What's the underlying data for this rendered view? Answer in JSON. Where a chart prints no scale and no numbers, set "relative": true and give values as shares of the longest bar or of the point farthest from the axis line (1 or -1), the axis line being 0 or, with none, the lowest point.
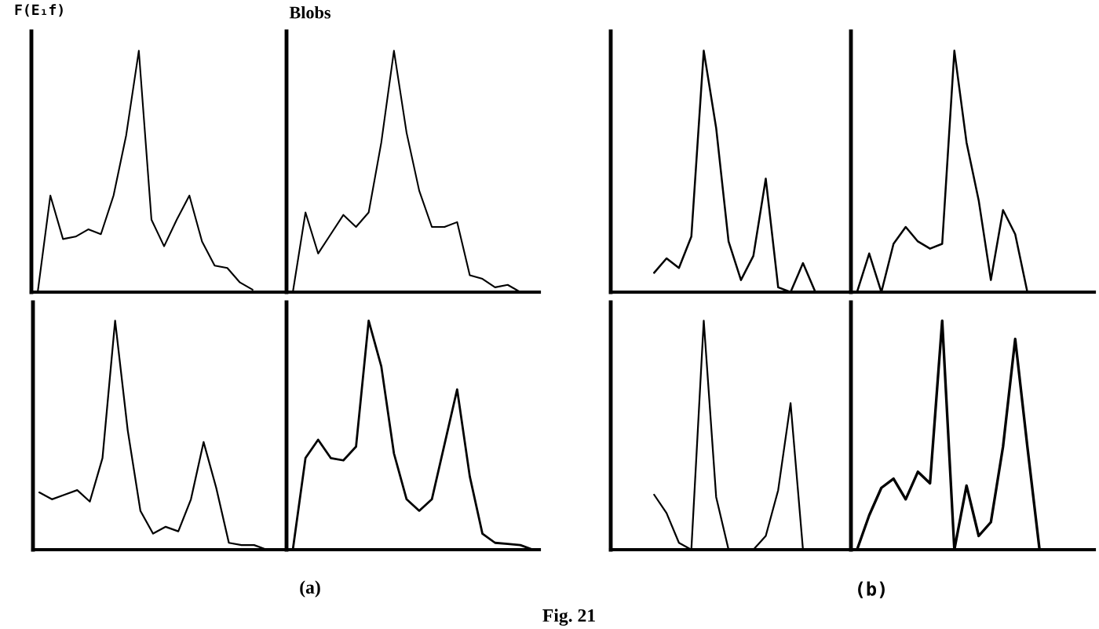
{
  "chart_data": [
    {
      "type": "line",
      "ylabel": "F(E₁f)",
      "annotations": [
        "(a)",
        "(b)",
        "Fig. 21"
      ],
      "relative": true,
      "categories": [
        null,
        null,
        null,
        null,
        null,
        null,
        null,
        null,
        null,
        null,
        null,
        null,
        null,
        null,
        null,
        null,
        null,
        null,
        null,
        null
      ],
      "series": [
        {
          "color": "#000000",
          "values": [
            0,
            0.4,
            0.22,
            0.23,
            0.26,
            0.24,
            0.4,
            0.65,
            1.0,
            0.3,
            0.19,
            0.3,
            0.4,
            0.21,
            0.11,
            0.1,
            0.04,
            0.01,
            null,
            null
          ]
        }
      ]
    },
    {
      "type": "line",
      "title": "Blobs",
      "relative": true,
      "categories": [
        null,
        null,
        null,
        null,
        null,
        null,
        null,
        null,
        null,
        null,
        null,
        null,
        null,
        null,
        null,
        null,
        null,
        null,
        null,
        null
      ],
      "series": [
        {
          "color": "#000000",
          "values": [
            0,
            0.33,
            0.16,
            0.24,
            0.32,
            0.27,
            0.33,
            0.62,
            1.0,
            0.66,
            0.42,
            0.27,
            0.27,
            0.29,
            0.07,
            0.055,
            0.02,
            0.03,
            0,
            null
          ]
        }
      ]
    },
    {
      "type": "line",
      "relative": true,
      "categories": [
        null,
        null,
        null,
        null,
        null,
        null,
        null,
        null,
        null,
        null,
        null,
        null,
        null,
        null,
        null,
        null,
        null,
        null,
        null,
        null
      ],
      "series": [
        {
          "color": "#000000",
          "values": [
            null,
            null,
            null,
            0.08,
            0.14,
            0.1,
            0.23,
            1.0,
            0.68,
            0.21,
            0.05,
            0.15,
            0.47,
            0.02,
            0,
            0.12,
            0,
            null,
            null,
            null
          ]
        }
      ]
    },
    {
      "type": "line",
      "relative": true,
      "categories": [
        null,
        null,
        null,
        null,
        null,
        null,
        null,
        null,
        null,
        null,
        null,
        null,
        null,
        null,
        null,
        null,
        null,
        null,
        null,
        null
      ],
      "series": [
        {
          "color": "#000000",
          "values": [
            0,
            0.16,
            0,
            0.2,
            0.27,
            0.21,
            0.18,
            0.2,
            1.0,
            0.62,
            0.38,
            0.05,
            0.34,
            0.24,
            0,
            null,
            null,
            null,
            null,
            null
          ]
        }
      ]
    },
    {
      "type": "line",
      "relative": true,
      "categories": [
        null,
        null,
        null,
        null,
        null,
        null,
        null,
        null,
        null,
        null,
        null,
        null,
        null,
        null,
        null,
        null,
        null,
        null,
        null,
        null
      ],
      "series": [
        {
          "color": "#000000",
          "values": [
            0.25,
            0.22,
            0.24,
            0.26,
            0.21,
            0.4,
            1.0,
            0.52,
            0.17,
            0.07,
            0.1,
            0.08,
            0.22,
            0.47,
            0.27,
            0.03,
            0.02,
            0.02,
            0,
            null
          ]
        }
      ]
    },
    {
      "type": "line",
      "relative": true,
      "categories": [
        null,
        null,
        null,
        null,
        null,
        null,
        null,
        null,
        null,
        null,
        null,
        null,
        null,
        null,
        null,
        null,
        null,
        null,
        null,
        null
      ],
      "series": [
        {
          "color": "#000000",
          "values": [
            0,
            0.4,
            0.48,
            0.4,
            0.39,
            0.45,
            1.0,
            0.8,
            0.42,
            0.22,
            0.17,
            0.22,
            0.46,
            0.7,
            0.32,
            0.07,
            0.03,
            0.025,
            0.02,
            0
          ]
        }
      ]
    },
    {
      "type": "line",
      "relative": true,
      "categories": [
        null,
        null,
        null,
        null,
        null,
        null,
        null,
        null,
        null,
        null,
        null,
        null,
        null,
        null,
        null,
        null,
        null,
        null,
        null,
        null
      ],
      "series": [
        {
          "color": "#000000",
          "values": [
            null,
            null,
            null,
            0.24,
            0.16,
            0.03,
            0,
            1.0,
            0.23,
            0,
            0,
            0,
            0.06,
            0.26,
            0.64,
            0,
            null,
            null,
            null,
            null
          ]
        }
      ]
    },
    {
      "type": "line",
      "relative": true,
      "categories": [
        null,
        null,
        null,
        null,
        null,
        null,
        null,
        null,
        null,
        null,
        null,
        null,
        null,
        null,
        null,
        null,
        null,
        null,
        null,
        null
      ],
      "series": [
        {
          "color": "#000000",
          "values": [
            0,
            0.15,
            0.27,
            0.31,
            0.22,
            0.34,
            0.29,
            1.0,
            0,
            0.28,
            0.06,
            0.12,
            0.45,
            0.92,
            0.45,
            0,
            null,
            null,
            null,
            null
          ]
        }
      ]
    }
  ]
}
